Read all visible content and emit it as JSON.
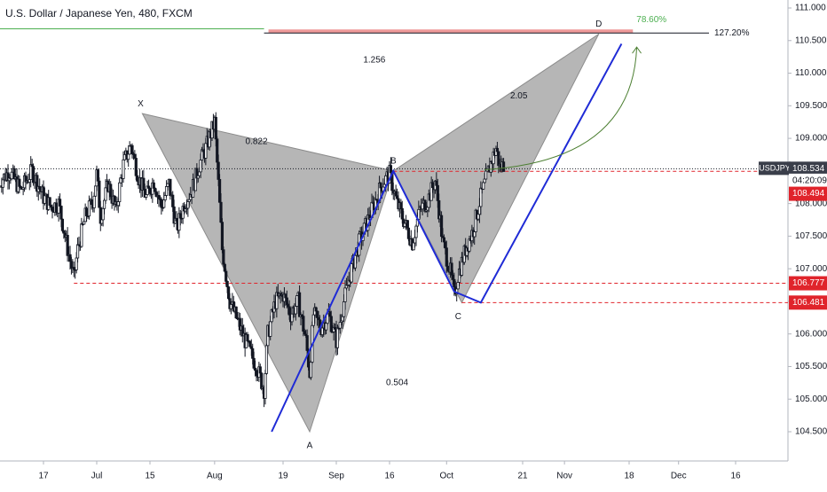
{
  "chart_data": {
    "type": "candlestick",
    "title": "U.S. Dollar / Japanese Yen, 480, FXCM",
    "symbol": "USDJPY",
    "xlabel": "",
    "ylabel": "",
    "ylim": [
      104.2,
      111.15
    ],
    "x_range_days": [
      0,
      191
    ],
    "x_ticks": [
      {
        "label": "17",
        "day": 0
      },
      {
        "label": "Jul",
        "day": 14
      },
      {
        "label": "15",
        "day": 28
      },
      {
        "label": "Aug",
        "day": 45
      },
      {
        "label": "19",
        "day": 63
      },
      {
        "label": "Sep",
        "day": 77
      },
      {
        "label": "16",
        "day": 91
      },
      {
        "label": "Oct",
        "day": 106
      },
      {
        "label": "21",
        "day": 126
      },
      {
        "label": "Nov",
        "day": 137
      },
      {
        "label": "18",
        "day": 154
      },
      {
        "label": "Dec",
        "day": 167
      },
      {
        "label": "16",
        "day": 182
      }
    ],
    "y_ticks": [
      104.5,
      105.0,
      105.5,
      106.0,
      106.5,
      107.0,
      107.5,
      108.0,
      108.5,
      109.0,
      109.5,
      110.0,
      110.5,
      111.0
    ],
    "y_tick_labels": [
      "104.500",
      "105.000",
      "105.500",
      "106.000",
      "106.500",
      "107.000",
      "107.500",
      "108.000",
      "108.500",
      "109.000",
      "109.500",
      "110.000",
      "110.500",
      "111.000"
    ],
    "price_path": [
      [
        -12,
        108.3
      ],
      [
        -9,
        108.5
      ],
      [
        -6,
        108.2
      ],
      [
        -3,
        108.5
      ],
      [
        0,
        108.1
      ],
      [
        2,
        107.95
      ],
      [
        4,
        108.0
      ],
      [
        6,
        107.4
      ],
      [
        8,
        106.85
      ],
      [
        9,
        107.3
      ],
      [
        11,
        107.8
      ],
      [
        13,
        108.05
      ],
      [
        14,
        108.45
      ],
      [
        15,
        107.8
      ],
      [
        17,
        108.3
      ],
      [
        19,
        107.9
      ],
      [
        21,
        108.6
      ],
      [
        23,
        108.9
      ],
      [
        25,
        108.4
      ],
      [
        27,
        108.1
      ],
      [
        29,
        108.35
      ],
      [
        31,
        107.95
      ],
      [
        33,
        108.3
      ],
      [
        35,
        107.6
      ],
      [
        37,
        108.0
      ],
      [
        39,
        108.2
      ],
      [
        41,
        108.6
      ],
      [
        43,
        108.9
      ],
      [
        45,
        109.25
      ],
      [
        46,
        108.3
      ],
      [
        47,
        107.3
      ],
      [
        49,
        106.5
      ],
      [
        51,
        106.2
      ],
      [
        53,
        105.9
      ],
      [
        56,
        105.5
      ],
      [
        58,
        105.15
      ],
      [
        59,
        106.0
      ],
      [
        61,
        106.5
      ],
      [
        63,
        106.6
      ],
      [
        65,
        106.3
      ],
      [
        67,
        106.5
      ],
      [
        69,
        105.9
      ],
      [
        70,
        105.4
      ],
      [
        71,
        106.3
      ],
      [
        73,
        106.1
      ],
      [
        75,
        106.3
      ],
      [
        77,
        105.9
      ],
      [
        79,
        106.5
      ],
      [
        81,
        107.0
      ],
      [
        83,
        107.4
      ],
      [
        85,
        107.7
      ],
      [
        87,
        108.0
      ],
      [
        89,
        108.3
      ],
      [
        91,
        108.45
      ],
      [
        93,
        108.0
      ],
      [
        95,
        107.7
      ],
      [
        97,
        107.4
      ],
      [
        99,
        107.9
      ],
      [
        101,
        108.05
      ],
      [
        103,
        108.35
      ],
      [
        104,
        107.9
      ],
      [
        105,
        107.4
      ],
      [
        107,
        106.95
      ],
      [
        108,
        106.6
      ],
      [
        109,
        106.9
      ],
      [
        111,
        107.3
      ],
      [
        113,
        107.6
      ],
      [
        115,
        108.1
      ],
      [
        117,
        108.5
      ],
      [
        119,
        108.85
      ],
      [
        120,
        108.55
      ],
      [
        121,
        108.6
      ]
    ],
    "pattern_points": [
      {
        "label": "X",
        "day": 26,
        "price": 109.38
      },
      {
        "label": "A",
        "day": 70,
        "price": 104.5
      },
      {
        "label": "B",
        "day": 92,
        "price": 108.5
      },
      {
        "label": "C",
        "day": 110,
        "price": 106.48
      },
      {
        "label": "D",
        "day": 146,
        "price": 110.6
      }
    ],
    "ratios": [
      {
        "text": "0.822",
        "day": 56,
        "price": 108.95
      },
      {
        "text": "1.256",
        "day": 87,
        "price": 110.2
      },
      {
        "text": "0.504",
        "day": 93,
        "price": 105.25
      },
      {
        "text": "2.05",
        "day": 125,
        "price": 109.65
      }
    ],
    "abcd_line": [
      [
        60,
        104.5
      ],
      [
        92,
        108.5
      ],
      [
        108,
        106.65
      ],
      [
        115,
        106.48
      ],
      [
        152,
        110.45
      ]
    ],
    "horizontal_levels": [
      {
        "price": 108.534,
        "style": "dotted",
        "color": "#131722"
      },
      {
        "price": 108.494,
        "style": "dashed",
        "color": "#e0242b",
        "from_day": 92
      },
      {
        "price": 106.777,
        "style": "dashed",
        "color": "#e0242b",
        "from_day": 8
      },
      {
        "price": 106.481,
        "style": "dashed",
        "color": "#e0242b",
        "from_day": 110
      }
    ],
    "fib_127": {
      "price": 110.63,
      "label": "127.20%",
      "from_day": 58,
      "to_day": 175
    },
    "fib_786": {
      "price": 110.63,
      "label": "78.60%",
      "from_day": 58,
      "to_day": 155
    },
    "top_level": {
      "price": 110.68,
      "color": "#4caf50"
    },
    "projection_arrow": {
      "from": [
        116,
        108.52
      ],
      "to": [
        156,
        110.4
      ],
      "color": "#4c7f32"
    },
    "price_labels": [
      {
        "text": "USDJPY",
        "price": 108.534,
        "kind": "symbol"
      },
      {
        "text": "108.534",
        "price": 108.534,
        "kind": "dark"
      },
      {
        "text": "04:20:09",
        "price": 108.35,
        "kind": "timer"
      },
      {
        "text": "108.494",
        "price": 108.15,
        "kind": "red"
      },
      {
        "text": "106.777",
        "price": 106.777,
        "kind": "red"
      },
      {
        "text": "106.481",
        "price": 106.481,
        "kind": "red"
      }
    ],
    "colors": {
      "candle": "#131722",
      "pattern_fill": "#9e9e9e",
      "abcd": "#1f2bd6",
      "red": "#e0242b",
      "fib_fill": "#ef9a9a",
      "fib_green": "#4caf50",
      "axis_text": "#131722"
    }
  }
}
